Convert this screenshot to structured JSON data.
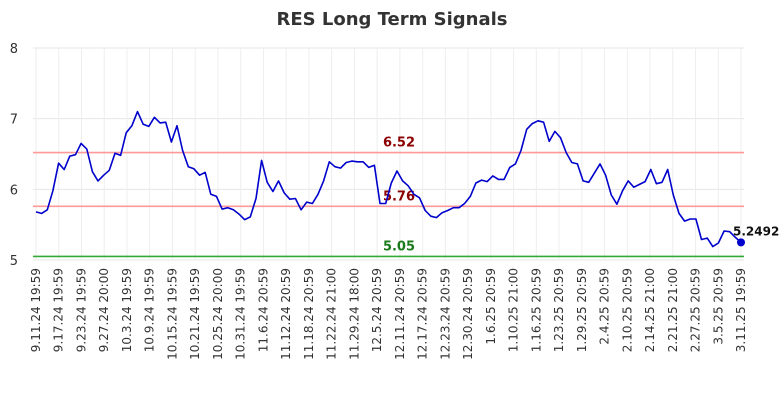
{
  "chart_data": {
    "type": "line",
    "title": "RES Long Term Signals",
    "ylim": [
      5,
      8
    ],
    "yticks": [
      "5",
      "6",
      "7",
      "8"
    ],
    "xticks": [
      "9.11.24 19:59",
      "9.17.24 19:59",
      "9.23.24 19:59",
      "9.27.24 20:00",
      "10.3.24 19:59",
      "10.9.24 19:59",
      "10.15.24 19:59",
      "10.21.24 19:59",
      "10.25.24 20:00",
      "10.31.24 19:59",
      "11.6.24 20:59",
      "11.12.24 20:59",
      "11.18.24 20:59",
      "11.22.24 21:00",
      "11.29.24 18:00",
      "12.5.24 20:59",
      "12.11.24 20:59",
      "12.17.24 20:59",
      "12.23.24 20:59",
      "12.30.24 20:59",
      "1.6.25 20:59",
      "1.10.25 21:00",
      "1.16.25 20:59",
      "1.23.25 20:59",
      "1.29.25 20:59",
      "2.4.25 20:59",
      "2.10.25 20:59",
      "2.14.25 21:00",
      "2.21.25 21:00",
      "2.27.25 20:59",
      "3.5.25 20:59",
      "3.11.25 19:59"
    ],
    "series": [
      {
        "color": "#0000cc",
        "values": [
          5.68,
          5.66,
          5.71,
          5.98,
          6.37,
          6.28,
          6.47,
          6.49,
          6.65,
          6.57,
          6.25,
          6.12,
          6.2,
          6.27,
          6.51,
          6.48,
          6.8,
          6.9,
          7.1,
          6.92,
          6.89,
          7.02,
          6.94,
          6.95,
          6.67,
          6.9,
          6.55,
          6.32,
          6.29,
          6.2,
          6.24,
          5.93,
          5.9,
          5.72,
          5.74,
          5.71,
          5.65,
          5.57,
          5.61,
          5.87,
          6.41,
          6.1,
          5.97,
          6.12,
          5.95,
          5.86,
          5.87,
          5.71,
          5.82,
          5.8,
          5.93,
          6.12,
          6.39,
          6.32,
          6.3,
          6.38,
          6.4,
          6.39,
          6.39,
          6.31,
          6.34,
          5.8,
          5.8,
          6.09,
          6.26,
          6.12,
          6.05,
          5.93,
          5.88,
          5.7,
          5.62,
          5.6,
          5.67,
          5.7,
          5.74,
          5.74,
          5.8,
          5.9,
          6.09,
          6.13,
          6.11,
          6.19,
          6.14,
          6.14,
          6.31,
          6.36,
          6.55,
          6.85,
          6.93,
          6.97,
          6.95,
          6.68,
          6.82,
          6.73,
          6.52,
          6.38,
          6.36,
          6.12,
          6.1,
          6.23,
          6.36,
          6.2,
          5.92,
          5.79,
          5.98,
          6.12,
          6.03,
          6.07,
          6.11,
          6.28,
          6.08,
          6.1,
          6.28,
          5.92,
          5.66,
          5.55,
          5.58,
          5.58,
          5.29,
          5.31,
          5.19,
          5.24,
          5.41,
          5.4,
          5.32,
          5.2492
        ]
      }
    ],
    "reference_lines": [
      {
        "value": 6.52,
        "label": "6.52",
        "color": "#ff9999",
        "label_color": "#8b0000"
      },
      {
        "value": 5.76,
        "label": "5.76",
        "color": "#ff9999",
        "label_color": "#8b0000"
      },
      {
        "value": 5.05,
        "label": "5.05",
        "color": "#33aa33",
        "label_color": "#1a7a1a"
      }
    ],
    "last_value_label": "5.2492",
    "grid": true
  }
}
